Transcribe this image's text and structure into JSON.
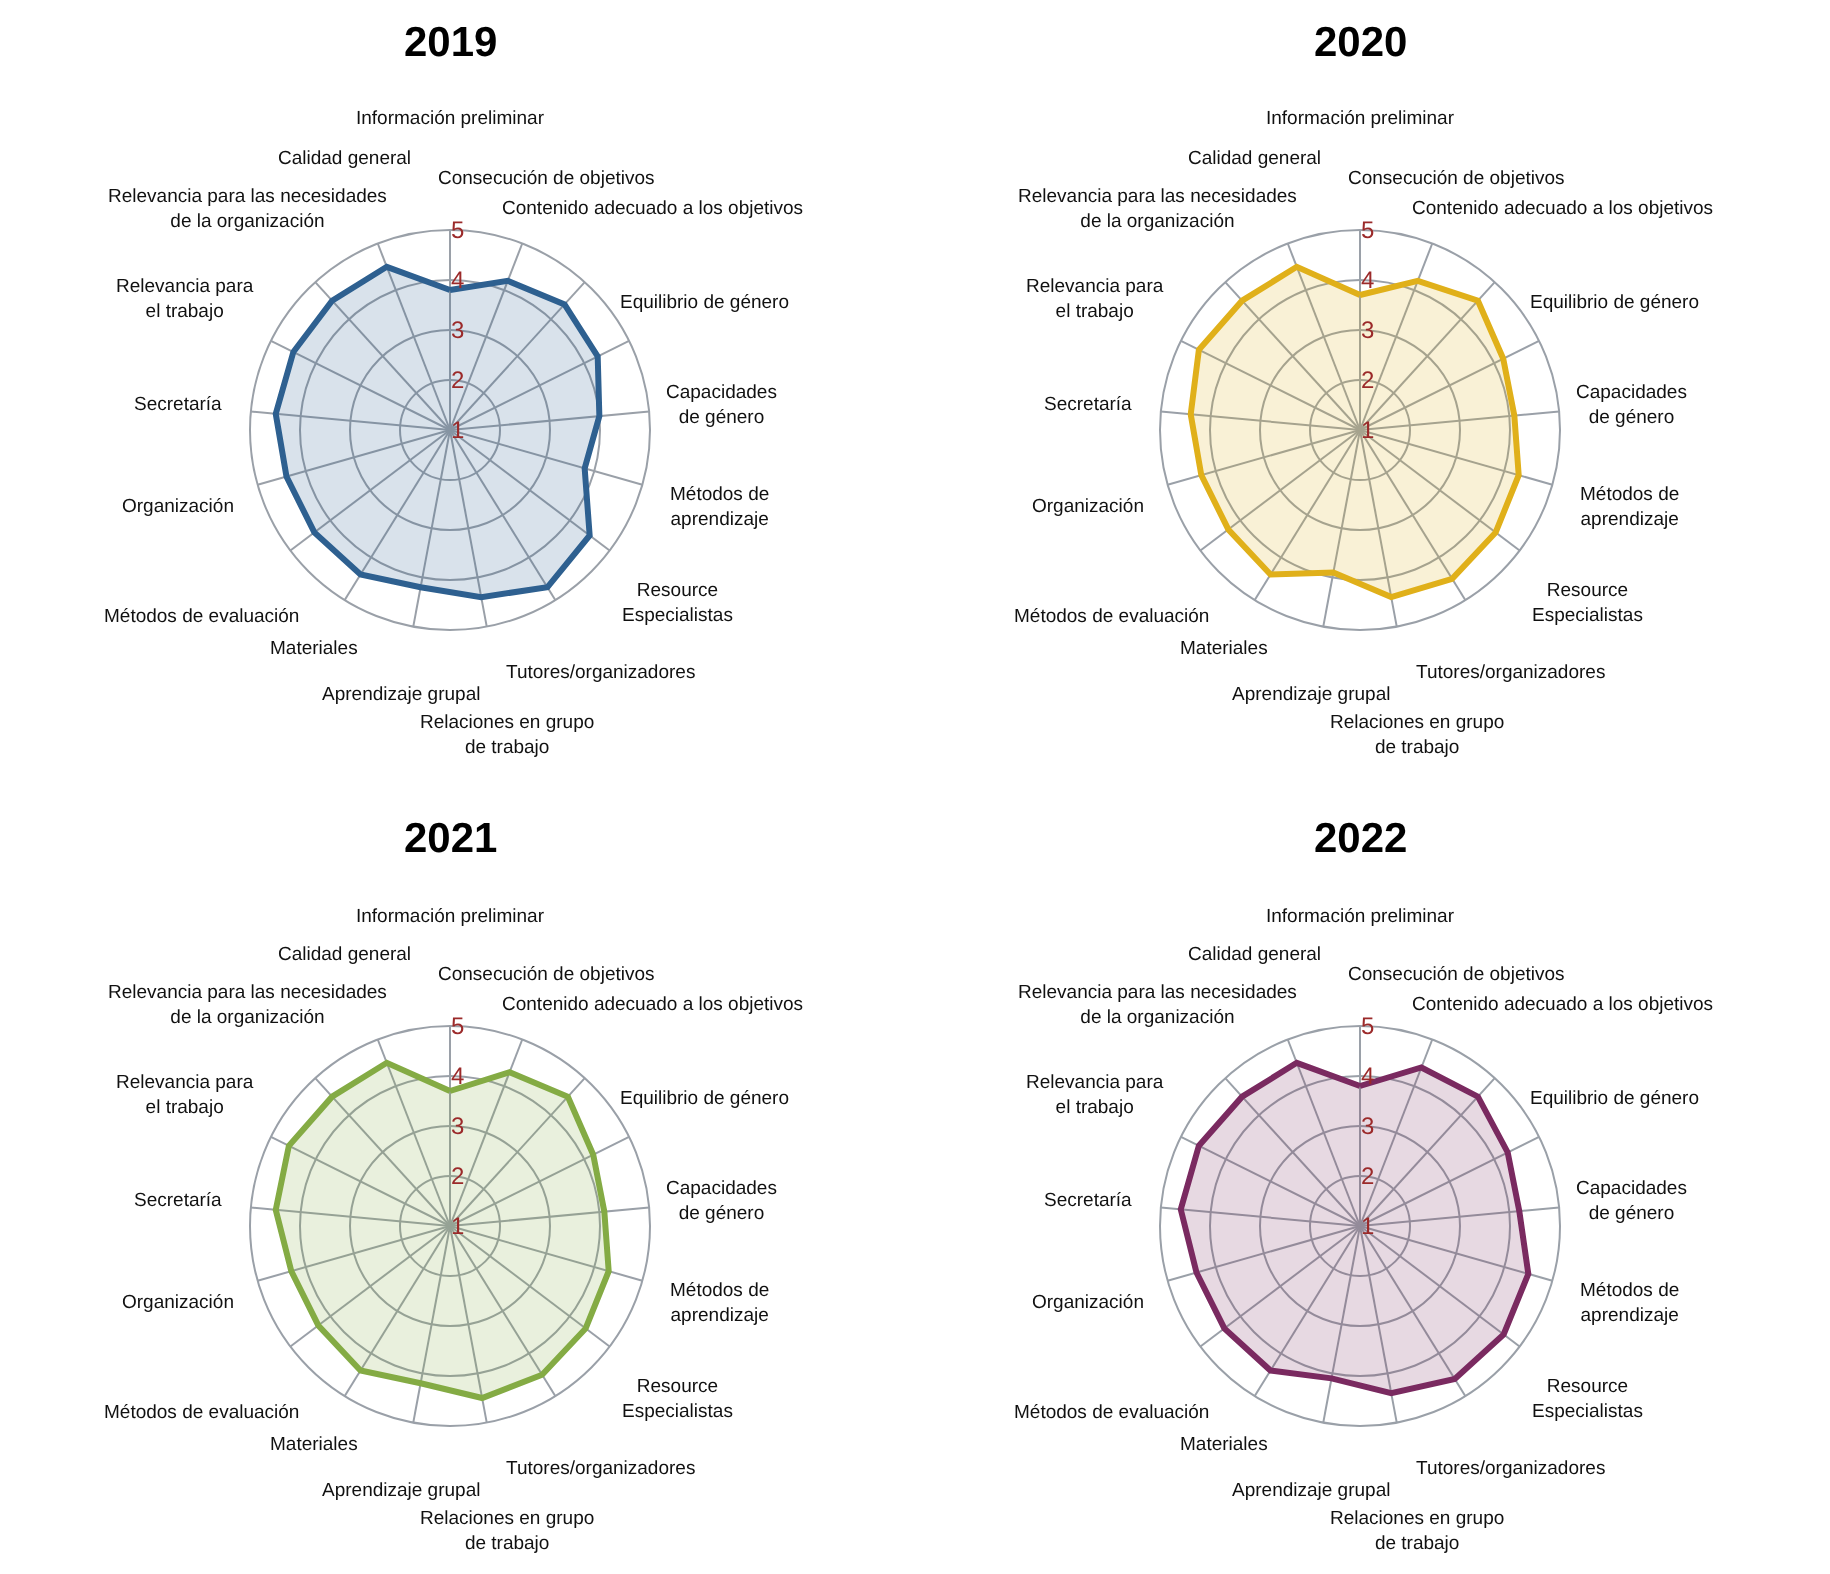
{
  "chart_data": [
    {
      "type": "radar",
      "title": "2019",
      "categories": [
        "Información preliminar",
        "Consecución de objetivos",
        "Contenido adecuado a los objetivos",
        "Equilibrio de género",
        "Capacidades\nde género",
        "Métodos de\naprendizaje",
        "Resource\nEspecialistas",
        "Tutores/organizadores",
        "Relaciones en grupo\nde trabajo",
        "Aprendizaje grupal",
        "Materiales",
        "Métodos de evaluación",
        "Organización",
        "Secretaría",
        "Relevancia para\nel trabajo",
        "Relevancia para las necesidades\nde la organización",
        "Calidad general"
      ],
      "ylim": [
        1,
        5
      ],
      "yticks": [
        1,
        2,
        3,
        4,
        5
      ],
      "grid": true,
      "series": [
        {
          "color": "#2e6090",
          "values": [
            3.8,
            4.2,
            4.4,
            4.3,
            4.0,
            3.8,
            4.5,
            4.7,
            4.4,
            4.2,
            4.4,
            4.4,
            4.4,
            4.5,
            4.5,
            4.5,
            4.5
          ]
        }
      ]
    },
    {
      "type": "radar",
      "title": "2020",
      "categories": [
        "Información preliminar",
        "Consecución de objetivos",
        "Contenido adecuado a los objetivos",
        "Equilibrio de género",
        "Capacidades\nde género",
        "Métodos de\naprendizaje",
        "Resource\nEspecialistas",
        "Tutores/organizadores",
        "Relaciones en grupo\nde trabajo",
        "Aprendizaje grupal",
        "Materiales",
        "Métodos de evaluación",
        "Organización",
        "Secretaría",
        "Relevancia para\nel trabajo",
        "Relevancia para las necesidades\nde la organización",
        "Calidad general"
      ],
      "ylim": [
        1,
        5
      ],
      "yticks": [
        1,
        2,
        3,
        4,
        5
      ],
      "grid": true,
      "series": [
        {
          "color": "#e0b01a",
          "values": [
            3.7,
            4.2,
            4.5,
            4.2,
            4.1,
            4.3,
            4.4,
            4.5,
            4.4,
            3.9,
            4.4,
            4.3,
            4.3,
            4.4,
            4.6,
            4.5,
            4.5
          ]
        }
      ]
    },
    {
      "type": "radar",
      "title": "2021",
      "categories": [
        "Información preliminar",
        "Consecución de objetivos",
        "Contenido adecuado a los objetivos",
        "Equilibrio de género",
        "Capacidades\nde género",
        "Métodos de\naprendizaje",
        "Resource\nEspecialistas",
        "Tutores/organizadores",
        "Relaciones en grupo\nde trabajo",
        "Aprendizaje grupal",
        "Materiales",
        "Métodos de evaluación",
        "Organización",
        "Secretaría",
        "Relevancia para\nel trabajo",
        "Relevancia para las necesidades\nde la organización",
        "Calidad general"
      ],
      "ylim": [
        1,
        5
      ],
      "yticks": [
        1,
        2,
        3,
        4,
        5
      ],
      "grid": true,
      "series": [
        {
          "color": "#84ab44",
          "values": [
            3.7,
            4.3,
            4.5,
            4.2,
            4.1,
            4.3,
            4.4,
            4.5,
            4.5,
            4.2,
            4.4,
            4.3,
            4.3,
            4.5,
            4.6,
            4.5,
            4.5
          ]
        }
      ]
    },
    {
      "type": "radar",
      "title": "2022",
      "categories": [
        "Información preliminar",
        "Consecución de objetivos",
        "Contenido adecuado a los objetivos",
        "Equilibrio de género",
        "Capacidades\nde género",
        "Métodos de\naprendizaje",
        "Resource\nEspecialistas",
        "Tutores/organizadores",
        "Relaciones en grupo\nde trabajo",
        "Aprendizaje grupal",
        "Materiales",
        "Métodos de evaluación",
        "Organización",
        "Secretaría",
        "Relevancia para\nel trabajo",
        "Relevancia para las necesidades\nde la organización",
        "Calidad general"
      ],
      "ylim": [
        1,
        5
      ],
      "yticks": [
        1,
        2,
        3,
        4,
        5
      ],
      "grid": true,
      "series": [
        {
          "color": "#7a2a60",
          "values": [
            3.8,
            4.4,
            4.5,
            4.3,
            4.2,
            4.5,
            4.6,
            4.6,
            4.4,
            4.1,
            4.4,
            4.4,
            4.4,
            4.6,
            4.6,
            4.5,
            4.5
          ]
        }
      ]
    }
  ]
}
